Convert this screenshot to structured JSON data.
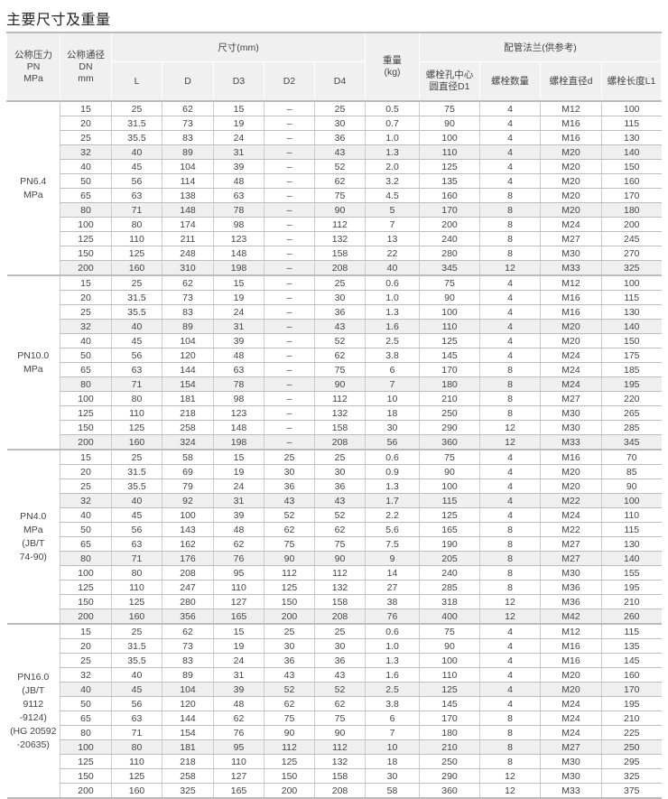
{
  "title": "主要尺寸及重量",
  "header": {
    "pn": "公称压力\nPN\nMPa",
    "dn": "公称通径\nDN\nmm",
    "dims": "尺寸(mm)",
    "dim_cols": [
      "L",
      "D",
      "D3",
      "D2",
      "D4"
    ],
    "weight": "重量\n(kg)",
    "flange": "配管法兰(供参考)",
    "flange_cols": [
      "螺栓孔中心\n圆直径D1",
      "螺栓数量",
      "螺栓直径d",
      "螺栓长度L1"
    ]
  },
  "groups": [
    {
      "pn": "PN6.4\nMPa",
      "shaded": [
        3,
        7,
        11
      ],
      "rows": [
        [
          "15",
          "25",
          "62",
          "15",
          "–",
          "25",
          "0.5",
          "75",
          "4",
          "M12",
          "100"
        ],
        [
          "20",
          "31.5",
          "73",
          "19",
          "–",
          "30",
          "0.7",
          "90",
          "4",
          "M16",
          "115"
        ],
        [
          "25",
          "35.5",
          "83",
          "24",
          "–",
          "36",
          "1.0",
          "100",
          "4",
          "M16",
          "130"
        ],
        [
          "32",
          "40",
          "89",
          "31",
          "–",
          "43",
          "1.3",
          "110",
          "4",
          "M20",
          "140"
        ],
        [
          "40",
          "45",
          "104",
          "39",
          "–",
          "52",
          "2.0",
          "125",
          "4",
          "M20",
          "150"
        ],
        [
          "50",
          "56",
          "114",
          "48",
          "–",
          "62",
          "3.2",
          "135",
          "4",
          "M20",
          "160"
        ],
        [
          "65",
          "63",
          "138",
          "63",
          "–",
          "75",
          "4.5",
          "160",
          "8",
          "M20",
          "170"
        ],
        [
          "80",
          "71",
          "148",
          "78",
          "–",
          "90",
          "5",
          "170",
          "8",
          "M20",
          "180"
        ],
        [
          "100",
          "80",
          "174",
          "98",
          "–",
          "112",
          "7",
          "200",
          "8",
          "M24",
          "200"
        ],
        [
          "125",
          "110",
          "211",
          "123",
          "–",
          "132",
          "13",
          "240",
          "8",
          "M27",
          "245"
        ],
        [
          "150",
          "125",
          "248",
          "148",
          "–",
          "158",
          "22",
          "280",
          "8",
          "M30",
          "270"
        ],
        [
          "200",
          "160",
          "310",
          "198",
          "–",
          "208",
          "40",
          "345",
          "12",
          "M33",
          "325"
        ]
      ]
    },
    {
      "pn": "PN10.0\nMPa",
      "shaded": [
        3,
        7,
        11
      ],
      "rows": [
        [
          "15",
          "25",
          "62",
          "15",
          "–",
          "25",
          "0.6",
          "75",
          "4",
          "M12",
          "100"
        ],
        [
          "20",
          "31.5",
          "73",
          "19",
          "–",
          "30",
          "1.0",
          "90",
          "4",
          "M16",
          "115"
        ],
        [
          "25",
          "35.5",
          "83",
          "24",
          "–",
          "36",
          "1.3",
          "100",
          "4",
          "M16",
          "130"
        ],
        [
          "32",
          "40",
          "89",
          "31",
          "–",
          "43",
          "1.6",
          "110",
          "4",
          "M20",
          "140"
        ],
        [
          "40",
          "45",
          "104",
          "39",
          "–",
          "52",
          "2.5",
          "125",
          "4",
          "M20",
          "150"
        ],
        [
          "50",
          "56",
          "120",
          "48",
          "–",
          "62",
          "3.8",
          "145",
          "4",
          "M24",
          "175"
        ],
        [
          "65",
          "63",
          "144",
          "63",
          "–",
          "75",
          "6",
          "170",
          "8",
          "M24",
          "185"
        ],
        [
          "80",
          "71",
          "154",
          "78",
          "–",
          "90",
          "7",
          "180",
          "8",
          "M24",
          "195"
        ],
        [
          "100",
          "80",
          "181",
          "98",
          "–",
          "112",
          "10",
          "210",
          "8",
          "M27",
          "220"
        ],
        [
          "125",
          "110",
          "218",
          "123",
          "–",
          "132",
          "18",
          "250",
          "8",
          "M30",
          "265"
        ],
        [
          "150",
          "125",
          "258",
          "148",
          "–",
          "158",
          "30",
          "290",
          "12",
          "M30",
          "285"
        ],
        [
          "200",
          "160",
          "324",
          "198",
          "–",
          "208",
          "56",
          "360",
          "12",
          "M33",
          "345"
        ]
      ]
    },
    {
      "pn": "PN4.0\nMPa\n(JB/T\n74-90)",
      "shaded": [
        3,
        7,
        11
      ],
      "rows": [
        [
          "15",
          "25",
          "58",
          "15",
          "25",
          "25",
          "0.6",
          "75",
          "4",
          "M16",
          "70"
        ],
        [
          "20",
          "31.5",
          "69",
          "19",
          "30",
          "30",
          "0.9",
          "90",
          "4",
          "M20",
          "85"
        ],
        [
          "25",
          "35.5",
          "79",
          "24",
          "36",
          "36",
          "1.3",
          "100",
          "4",
          "M20",
          "90"
        ],
        [
          "32",
          "40",
          "92",
          "31",
          "43",
          "43",
          "1.7",
          "115",
          "4",
          "M22",
          "100"
        ],
        [
          "40",
          "45",
          "100",
          "39",
          "52",
          "52",
          "2.2",
          "125",
          "4",
          "M24",
          "110"
        ],
        [
          "50",
          "56",
          "143",
          "48",
          "62",
          "62",
          "5.6",
          "165",
          "8",
          "M22",
          "115"
        ],
        [
          "65",
          "63",
          "162",
          "62",
          "75",
          "75",
          "7.5",
          "190",
          "8",
          "M27",
          "130"
        ],
        [
          "80",
          "71",
          "176",
          "76",
          "90",
          "90",
          "9",
          "205",
          "8",
          "M27",
          "140"
        ],
        [
          "100",
          "80",
          "208",
          "95",
          "112",
          "112",
          "14",
          "240",
          "8",
          "M30",
          "155"
        ],
        [
          "125",
          "110",
          "247",
          "110",
          "125",
          "132",
          "27",
          "285",
          "8",
          "M36",
          "195"
        ],
        [
          "150",
          "125",
          "280",
          "127",
          "150",
          "158",
          "38",
          "318",
          "12",
          "M36",
          "210"
        ],
        [
          "200",
          "160",
          "356",
          "165",
          "200",
          "208",
          "76",
          "400",
          "12",
          "M42",
          "260"
        ]
      ]
    },
    {
      "pn": "PN16.0\n(JB/T\n9112\n-9124)\n(HG 20592\n-20635)",
      "shaded": [
        4,
        8
      ],
      "rows": [
        [
          "15",
          "25",
          "62",
          "15",
          "25",
          "25",
          "0.6",
          "75",
          "4",
          "M12",
          "115"
        ],
        [
          "20",
          "31.5",
          "73",
          "19",
          "30",
          "30",
          "1.0",
          "90",
          "4",
          "M16",
          "135"
        ],
        [
          "25",
          "35.5",
          "83",
          "24",
          "36",
          "36",
          "1.3",
          "100",
          "4",
          "M16",
          "145"
        ],
        [
          "32",
          "40",
          "89",
          "31",
          "43",
          "43",
          "1.6",
          "110",
          "4",
          "M20",
          "160"
        ],
        [
          "40",
          "45",
          "104",
          "39",
          "52",
          "52",
          "2.5",
          "125",
          "4",
          "M20",
          "170"
        ],
        [
          "50",
          "56",
          "120",
          "48",
          "62",
          "62",
          "3.8",
          "145",
          "4",
          "M24",
          "195"
        ],
        [
          "65",
          "63",
          "144",
          "62",
          "75",
          "75",
          "6",
          "170",
          "8",
          "M24",
          "210"
        ],
        [
          "80",
          "71",
          "154",
          "76",
          "90",
          "90",
          "7",
          "180",
          "8",
          "M24",
          "225"
        ],
        [
          "100",
          "80",
          "181",
          "95",
          "112",
          "112",
          "10",
          "210",
          "8",
          "M27",
          "250"
        ],
        [
          "125",
          "110",
          "218",
          "110",
          "125",
          "132",
          "18",
          "250",
          "8",
          "M30",
          "295"
        ],
        [
          "150",
          "125",
          "258",
          "127",
          "150",
          "158",
          "30",
          "290",
          "12",
          "M30",
          "325"
        ],
        [
          "200",
          "160",
          "325",
          "165",
          "200",
          "208",
          "58",
          "360",
          "12",
          "M33",
          "375"
        ]
      ]
    }
  ]
}
